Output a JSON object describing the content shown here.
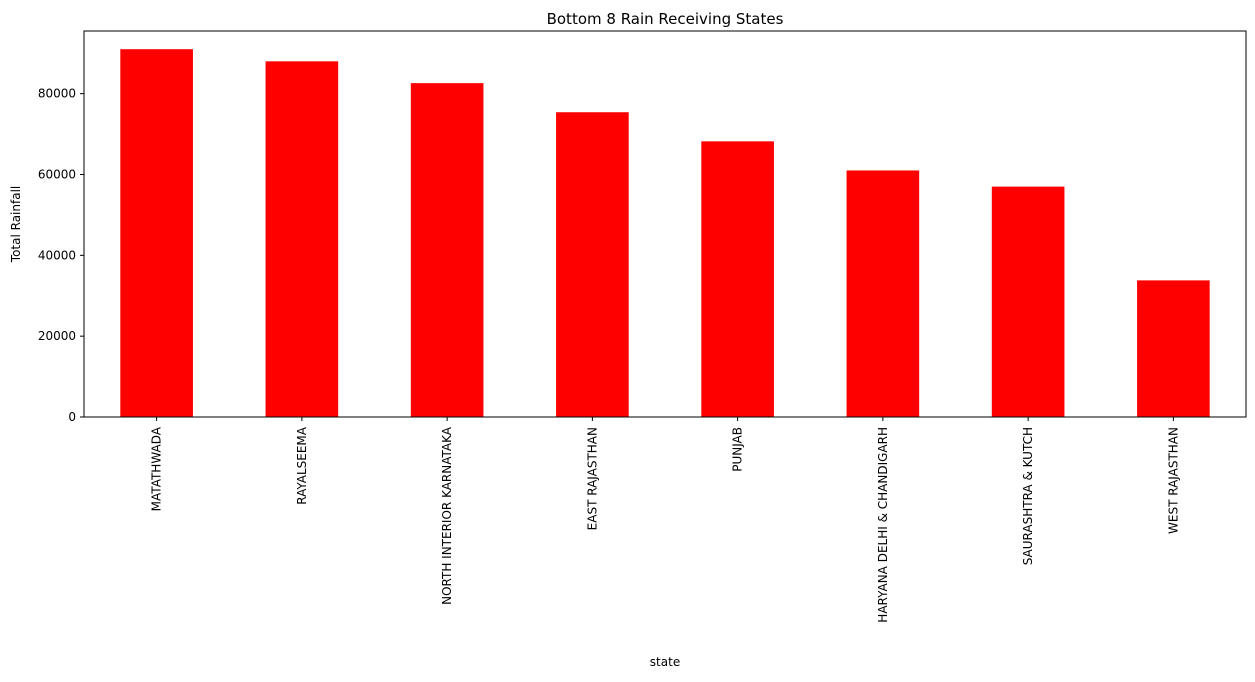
{
  "chart_data": {
    "type": "bar",
    "title": "Bottom 8 Rain Receiving States",
    "xlabel": "state",
    "ylabel": "Total Rainfall",
    "categories": [
      "MATATHWADA",
      "RAYALSEEMA",
      "NORTH INTERIOR KARNATAKA",
      "EAST RAJASTHAN",
      "PUNJAB",
      "HARYANA DELHI & CHANDIGARH",
      "SAURASHTRA & KUTCH",
      "WEST RAJASTHAN"
    ],
    "values": [
      91000,
      88000,
      82600,
      75400,
      68200,
      61000,
      57000,
      33800
    ],
    "ylim": [
      0,
      95500
    ],
    "yticks": [
      0,
      20000,
      40000,
      60000,
      80000
    ],
    "bar_color": "#ff0000",
    "grid": false,
    "legend": "none"
  }
}
